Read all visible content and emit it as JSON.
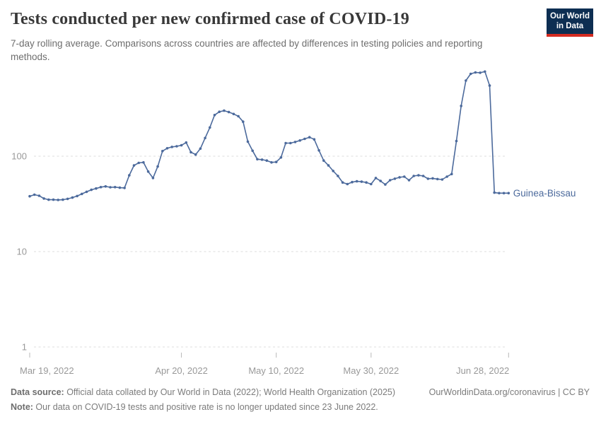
{
  "header": {
    "title": "Tests conducted per new confirmed case of COVID-19",
    "subtitle": "7-day rolling average. Comparisons across countries are affected by differences in testing policies and reporting methods."
  },
  "branding": {
    "logo_line1": "Our World",
    "logo_line2": "in Data",
    "logo_bg": "#0d2e52",
    "logo_stripe": "#d42b21"
  },
  "chart_data": {
    "type": "line",
    "title": "Tests conducted per new confirmed case of COVID-19",
    "xlabel": "",
    "ylabel": "",
    "yscale": "log",
    "ylim": [
      1,
      900
    ],
    "grid": "dashed horizontal at powers of 10",
    "legend_position": "end-of-line label",
    "y_gridlines": [
      {
        "label": "100",
        "value": 100
      },
      {
        "label": "10",
        "value": 10
      },
      {
        "label": "1",
        "value": 1
      }
    ],
    "x_ticks": [
      {
        "label": "Mar 19, 2022",
        "day_index": 0
      },
      {
        "label": "Apr 20, 2022",
        "day_index": 32
      },
      {
        "label": "May 10, 2022",
        "day_index": 52
      },
      {
        "label": "May 30, 2022",
        "day_index": 72
      },
      {
        "label": "Jun 28, 2022",
        "day_index": 101
      }
    ],
    "series": [
      {
        "name": "Guinea-Bissau",
        "color": "#4C6A9C",
        "start_date": "2022-03-19",
        "end_date": "2022-06-28",
        "frequency": "daily",
        "values": [
          38,
          39.5,
          38.5,
          36,
          35,
          35,
          34.8,
          35,
          35.7,
          36.8,
          38.2,
          40.2,
          42.3,
          44.4,
          45.9,
          47.4,
          48.2,
          47.2,
          47.4,
          46.7,
          46.5,
          63,
          80,
          85,
          86,
          69,
          59,
          78,
          113,
          121,
          125,
          127,
          130,
          139,
          110,
          104,
          120,
          155,
          200,
          270,
          292,
          300,
          290,
          277,
          262,
          230,
          142,
          114,
          93,
          92,
          90,
          86,
          87,
          97,
          137,
          137,
          141,
          146,
          152,
          158,
          150,
          115,
          90,
          80,
          70,
          62,
          53,
          51,
          53.5,
          54.5,
          54,
          53,
          51,
          59,
          55,
          50.5,
          56,
          58,
          60,
          61,
          56,
          62,
          63,
          62,
          58,
          58.5,
          57.5,
          57,
          61,
          65,
          144,
          336,
          620,
          730,
          755,
          750,
          770,
          550,
          41.5,
          41,
          41,
          41
        ]
      }
    ],
    "colors": {
      "line": "#4C6A9C",
      "gridline": "#dcdcdc",
      "axis_text": "#999999",
      "tick_mark": "#b8b8b8"
    }
  },
  "footer": {
    "source_label": "Data source:",
    "source_text": " Official data collated by Our World in Data (2022); World Health Organization (2025)",
    "link_text": "OurWorldinData.org/coronavirus | CC BY",
    "note_label": "Note:",
    "note_text": " Our data on COVID-19 tests and positive rate is no longer updated since 23 June 2022."
  }
}
